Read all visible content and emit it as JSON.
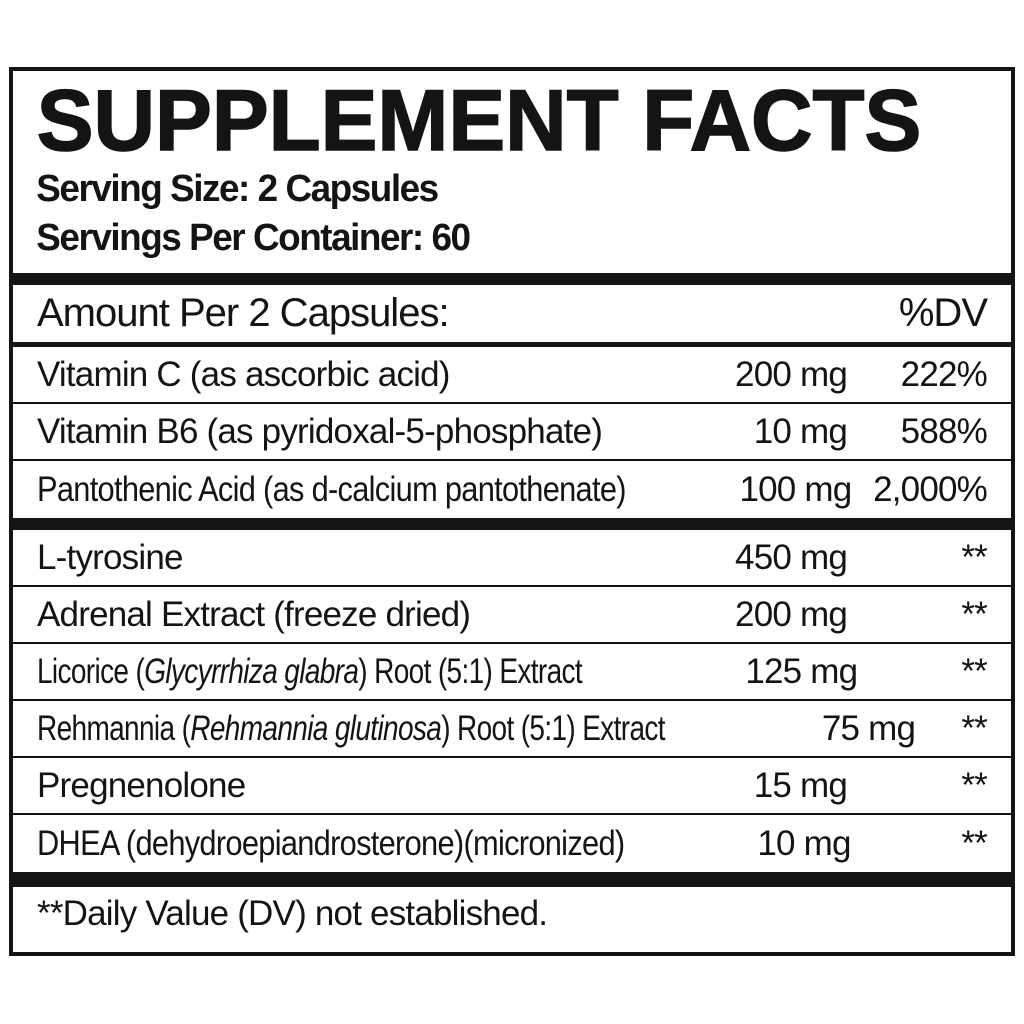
{
  "colors": {
    "ink": "#141414",
    "background": "#ffffff"
  },
  "title": "SUPPLEMENT FACTS",
  "serving": {
    "size": "Serving Size: 2 Capsules",
    "per_container": "Servings Per Container: 60"
  },
  "header": {
    "amount_label": "Amount Per 2 Capsules:",
    "dv_label": "%DV"
  },
  "rows": [
    {
      "pre": "Vitamin C (as ascorbic acid)",
      "it": "",
      "post": "",
      "amount": "200 mg",
      "dv": "222%"
    },
    {
      "pre": "Vitamin B6 (as pyridoxal-5-phosphate)",
      "it": "",
      "post": "",
      "amount": "10 mg",
      "dv": "588%"
    },
    {
      "pre": "Pantothenic Acid (as d-calcium pantothenate)",
      "it": "",
      "post": "",
      "amount": "100 mg",
      "dv": "2,000%"
    },
    {
      "pre": "L-tyrosine",
      "it": "",
      "post": "",
      "amount": "450 mg",
      "dv": "**"
    },
    {
      "pre": "Adrenal Extract (freeze dried)",
      "it": "",
      "post": "",
      "amount": "200 mg",
      "dv": "**"
    },
    {
      "pre": "Licorice (",
      "it": "Glycyrrhiza glabra",
      "post": ") Root (5:1) Extract",
      "amount": "125 mg",
      "dv": "**"
    },
    {
      "pre": "Rehmannia (",
      "it": "Rehmannia glutinosa",
      "post": ") Root (5:1) Extract",
      "amount": "75 mg",
      "dv": "**"
    },
    {
      "pre": "Pregnenolone",
      "it": "",
      "post": "",
      "amount": "15 mg",
      "dv": "**"
    },
    {
      "pre": "DHEA (dehydroepiandrosterone)(micronized)",
      "it": "",
      "post": "",
      "amount": "10 mg",
      "dv": "**"
    }
  ],
  "footnote": "**Daily Value (DV) not established."
}
